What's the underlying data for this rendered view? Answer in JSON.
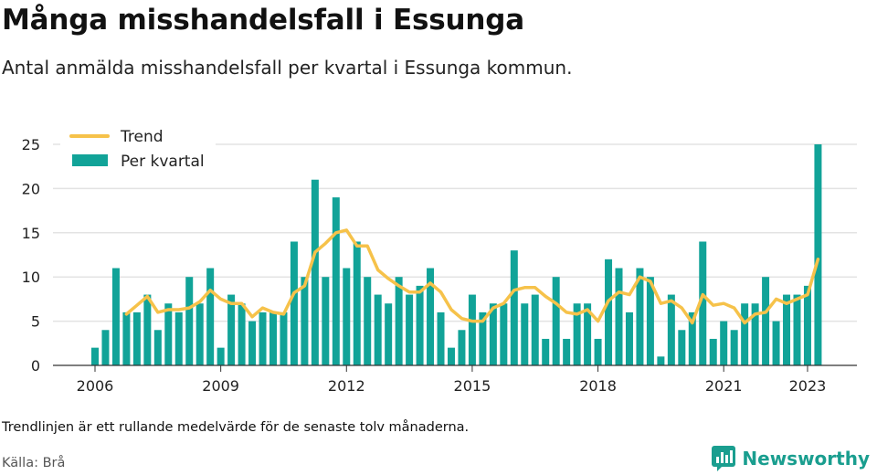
{
  "title": "Många misshandelsfall i Essunga",
  "subtitle": "Antal anmälda misshandelsfall per kvartal i Essunga kommun.",
  "note": "Trendlinjen är ett rullande medelvärde för de senaste tolv månaderna.",
  "source": "Källa: Brå",
  "brand": {
    "label": "Newsworthy",
    "icon": "bar-chart-speech-logo",
    "color": "#1a9e8f"
  },
  "chart_data": {
    "type": "bar",
    "title": "",
    "xlabel": "",
    "ylabel": "",
    "ylim": [
      0,
      25
    ],
    "yticks": [
      0,
      5,
      10,
      15,
      20,
      25
    ],
    "xticks": [
      "2006",
      "2009",
      "2012",
      "2015",
      "2018",
      "2021",
      "2023"
    ],
    "grid": true,
    "legend_position": "top-left",
    "categories": [
      "2006 Q1",
      "2006 Q2",
      "2006 Q3",
      "2006 Q4",
      "2007 Q1",
      "2007 Q2",
      "2007 Q3",
      "2007 Q4",
      "2008 Q1",
      "2008 Q2",
      "2008 Q3",
      "2008 Q4",
      "2009 Q1",
      "2009 Q2",
      "2009 Q3",
      "2009 Q4",
      "2010 Q1",
      "2010 Q2",
      "2010 Q3",
      "2010 Q4",
      "2011 Q1",
      "2011 Q2",
      "2011 Q3",
      "2011 Q4",
      "2012 Q1",
      "2012 Q2",
      "2012 Q3",
      "2012 Q4",
      "2013 Q1",
      "2013 Q2",
      "2013 Q3",
      "2013 Q4",
      "2014 Q1",
      "2014 Q2",
      "2014 Q3",
      "2014 Q4",
      "2015 Q1",
      "2015 Q2",
      "2015 Q3",
      "2015 Q4",
      "2016 Q1",
      "2016 Q2",
      "2016 Q3",
      "2016 Q4",
      "2017 Q1",
      "2017 Q2",
      "2017 Q3",
      "2017 Q4",
      "2018 Q1",
      "2018 Q2",
      "2018 Q3",
      "2018 Q4",
      "2019 Q1",
      "2019 Q2",
      "2019 Q3",
      "2019 Q4",
      "2020 Q1",
      "2020 Q2",
      "2020 Q3",
      "2020 Q4",
      "2021 Q1",
      "2021 Q2",
      "2021 Q3",
      "2021 Q4",
      "2022 Q1",
      "2022 Q2",
      "2022 Q3",
      "2022 Q4",
      "2023 Q1",
      "2023 Q2"
    ],
    "series": [
      {
        "name": "Per kvartal",
        "kind": "bar",
        "color": "#11a398",
        "values": [
          2,
          4,
          11,
          6,
          6,
          8,
          4,
          7,
          6,
          10,
          7,
          11,
          2,
          8,
          7,
          5,
          6,
          6,
          6,
          14,
          10,
          21,
          10,
          19,
          11,
          14,
          10,
          8,
          7,
          10,
          8,
          9,
          11,
          6,
          2,
          4,
          8,
          6,
          7,
          7,
          13,
          7,
          8,
          3,
          10,
          3,
          7,
          7,
          3,
          12,
          11,
          6,
          11,
          10,
          1,
          8,
          4,
          6,
          14,
          3,
          5,
          4,
          7,
          7,
          10,
          5,
          8,
          8,
          9,
          25
        ]
      },
      {
        "name": "Trend",
        "kind": "line",
        "color": "#f6c24a",
        "values": [
          null,
          null,
          null,
          5.8,
          6.8,
          7.8,
          6.0,
          6.3,
          6.3,
          6.5,
          7.2,
          8.5,
          7.5,
          7.0,
          7.0,
          5.5,
          6.5,
          6.0,
          5.8,
          8.2,
          9.0,
          12.8,
          13.8,
          15.0,
          15.3,
          13.5,
          13.5,
          10.8,
          9.8,
          9.0,
          8.3,
          8.3,
          9.3,
          8.3,
          6.3,
          5.3,
          5.0,
          5.0,
          6.5,
          7.0,
          8.5,
          8.8,
          8.8,
          7.8,
          7.0,
          6.0,
          5.8,
          6.3,
          5.0,
          7.3,
          8.3,
          8.0,
          10.0,
          9.5,
          7.0,
          7.3,
          6.5,
          4.8,
          8.0,
          6.8,
          7.0,
          6.5,
          4.8,
          5.8,
          6.0,
          7.5,
          7.0,
          7.5,
          8.0,
          12.0
        ]
      }
    ]
  }
}
